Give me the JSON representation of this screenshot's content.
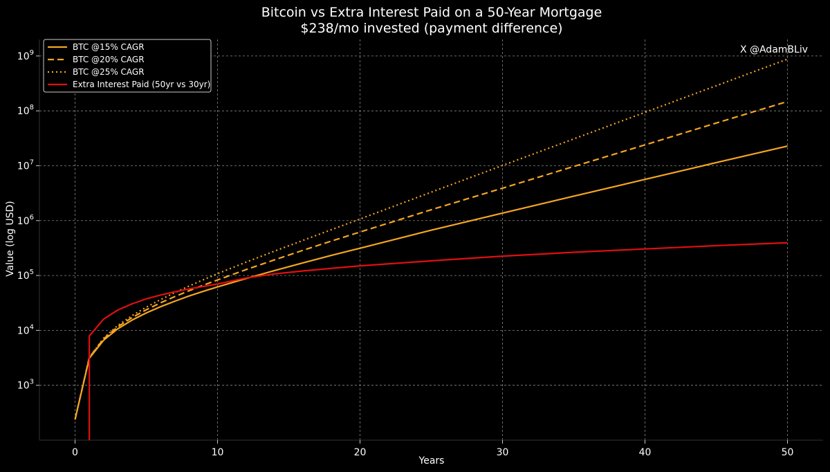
{
  "chart_data": {
    "type": "line",
    "title": "Bitcoin vs Extra Interest Paid on a 50-Year Mortgage",
    "subtitle": "$238/mo invested (payment difference)",
    "xlabel": "Years",
    "ylabel": "Value (log USD)",
    "watermark": "X @AdamBLiv",
    "x_scale": "linear",
    "y_scale": "log",
    "xlim": [
      -2.5,
      52.5
    ],
    "ylim": [
      100,
      2000000000
    ],
    "x_ticks": [
      0,
      10,
      20,
      30,
      40,
      50
    ],
    "y_ticks": [
      {
        "value": 1000,
        "base": "10",
        "exp": "3"
      },
      {
        "value": 10000,
        "base": "10",
        "exp": "4"
      },
      {
        "value": 100000,
        "base": "10",
        "exp": "5"
      },
      {
        "value": 1000000,
        "base": "10",
        "exp": "6"
      },
      {
        "value": 10000000,
        "base": "10",
        "exp": "7"
      },
      {
        "value": 100000000,
        "base": "10",
        "exp": "8"
      },
      {
        "value": 1000000000,
        "base": "10",
        "exp": "9"
      }
    ],
    "grid": true,
    "legend_position": "top-left",
    "series": [
      {
        "name": "BTC @15% CAGR",
        "color": "#f5a623",
        "style": "solid",
        "x": [
          0,
          1,
          2,
          3,
          4,
          5,
          6,
          7,
          8,
          9,
          10,
          12,
          14,
          16,
          18,
          20,
          25,
          30,
          35,
          40,
          45,
          50
        ],
        "y": [
          238,
          3100,
          6600,
          10700,
          15400,
          20800,
          27000,
          34000,
          42300,
          51500,
          62000,
          88000,
          123000,
          170000,
          233000,
          314000,
          670000,
          1370000,
          2790000,
          5640000,
          11400000,
          22800000
        ]
      },
      {
        "name": "BTC @20% CAGR",
        "color": "#f5a623",
        "style": "dashed",
        "x": [
          0,
          1,
          2,
          3,
          4,
          5,
          6,
          7,
          8,
          9,
          10,
          12,
          14,
          16,
          18,
          20,
          25,
          30,
          35,
          40,
          45,
          50
        ],
        "y": [
          238,
          3200,
          7000,
          11600,
          17100,
          23800,
          31800,
          41300,
          52800,
          66500,
          83000,
          128000,
          193000,
          288000,
          425000,
          620000,
          1580000,
          3900000,
          9700000,
          24000000,
          60000000,
          148000000
        ]
      },
      {
        "name": "BTC @25% CAGR",
        "color": "#f5a623",
        "style": "dotted",
        "x": [
          0,
          1,
          2,
          3,
          4,
          5,
          6,
          7,
          8,
          9,
          10,
          12,
          14,
          16,
          18,
          20,
          25,
          30,
          35,
          40,
          45,
          50
        ],
        "y": [
          238,
          3200,
          7200,
          12300,
          18600,
          26500,
          36400,
          48800,
          64300,
          83600,
          108000,
          175000,
          278000,
          437000,
          685000,
          1070000,
          3300000,
          10100000,
          30800000,
          94000000,
          287000000,
          875000000
        ]
      },
      {
        "name": "Extra Interest Paid (50yr vs 30yr)",
        "color": "#e01010",
        "style": "solid",
        "x": [
          1,
          1,
          2,
          3,
          4,
          5,
          6,
          7,
          8,
          10,
          12,
          14,
          16,
          18,
          20,
          25,
          30,
          35,
          40,
          45,
          50
        ],
        "y": [
          100,
          7900,
          16000,
          23500,
          30500,
          37500,
          44000,
          50500,
          57000,
          70000,
          90000,
          107000,
          121000,
          135000,
          150000,
          185000,
          225000,
          265000,
          305000,
          350000,
          395000
        ]
      }
    ]
  }
}
